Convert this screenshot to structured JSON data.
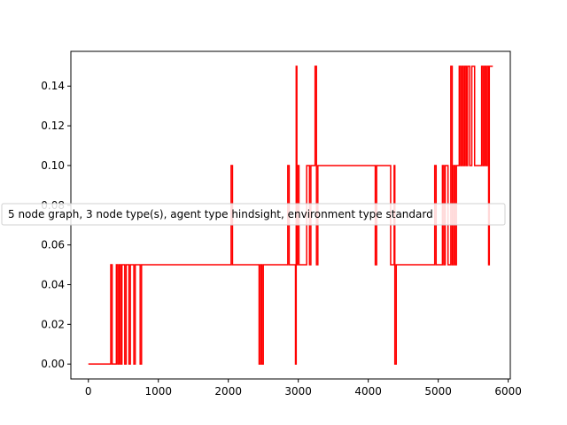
{
  "chart_data": {
    "type": "line",
    "title": "",
    "xlabel": "",
    "ylabel": "",
    "xlim": [
      -250,
      6030
    ],
    "ylim": [
      -0.0075,
      0.1575
    ],
    "xticks": [
      0,
      1000,
      2000,
      3000,
      4000,
      5000,
      6000
    ],
    "xtick_labels": [
      "0",
      "1000",
      "2000",
      "3000",
      "4000",
      "5000",
      "6000"
    ],
    "yticks": [
      0.0,
      0.02,
      0.04,
      0.06,
      0.08,
      0.1,
      0.12,
      0.14
    ],
    "ytick_labels": [
      "0.00",
      "0.02",
      "0.04",
      "0.06",
      "0.08",
      "0.10",
      "0.12",
      "0.14"
    ],
    "grid": false,
    "legend_position": "center-left",
    "series": [
      {
        "name": "5 node graph, 3 node type(s), agent type hindsight, environment type standard",
        "color": "#ff0000",
        "step": true,
        "points": [
          [
            0,
            0.0
          ],
          [
            320,
            0.05
          ],
          [
            340,
            0.0
          ],
          [
            400,
            0.05
          ],
          [
            420,
            0.0
          ],
          [
            440,
            0.05
          ],
          [
            460,
            0.0
          ],
          [
            480,
            0.05
          ],
          [
            500,
            0.05
          ],
          [
            520,
            0.0
          ],
          [
            540,
            0.05
          ],
          [
            580,
            0.0
          ],
          [
            600,
            0.05
          ],
          [
            650,
            0.0
          ],
          [
            670,
            0.05
          ],
          [
            740,
            0.0
          ],
          [
            760,
            0.05
          ],
          [
            2040,
            0.1
          ],
          [
            2060,
            0.05
          ],
          [
            2440,
            0.0
          ],
          [
            2460,
            0.05
          ],
          [
            2480,
            0.0
          ],
          [
            2500,
            0.05
          ],
          [
            2850,
            0.1
          ],
          [
            2870,
            0.05
          ],
          [
            2960,
            0.0
          ],
          [
            2970,
            0.15
          ],
          [
            2980,
            0.05
          ],
          [
            2990,
            0.1
          ],
          [
            3010,
            0.05
          ],
          [
            3120,
            0.1
          ],
          [
            3160,
            0.05
          ],
          [
            3180,
            0.1
          ],
          [
            3240,
            0.15
          ],
          [
            3260,
            0.05
          ],
          [
            3280,
            0.1
          ],
          [
            4100,
            0.05
          ],
          [
            4120,
            0.1
          ],
          [
            4320,
            0.05
          ],
          [
            4370,
            0.1
          ],
          [
            4380,
            0.0
          ],
          [
            4400,
            0.05
          ],
          [
            4950,
            0.1
          ],
          [
            4970,
            0.05
          ],
          [
            5060,
            0.1
          ],
          [
            5080,
            0.05
          ],
          [
            5100,
            0.1
          ],
          [
            5140,
            0.05
          ],
          [
            5180,
            0.15
          ],
          [
            5200,
            0.05
          ],
          [
            5220,
            0.1
          ],
          [
            5240,
            0.05
          ],
          [
            5260,
            0.1
          ],
          [
            5300,
            0.15
          ],
          [
            5320,
            0.1
          ],
          [
            5340,
            0.15
          ],
          [
            5360,
            0.1
          ],
          [
            5380,
            0.15
          ],
          [
            5400,
            0.1
          ],
          [
            5420,
            0.15
          ],
          [
            5450,
            0.1
          ],
          [
            5480,
            0.15
          ],
          [
            5520,
            0.1
          ],
          [
            5620,
            0.15
          ],
          [
            5640,
            0.1
          ],
          [
            5660,
            0.15
          ],
          [
            5680,
            0.1
          ],
          [
            5700,
            0.15
          ],
          [
            5720,
            0.05
          ],
          [
            5730,
            0.15
          ],
          [
            5780,
            0.15
          ]
        ]
      }
    ]
  }
}
